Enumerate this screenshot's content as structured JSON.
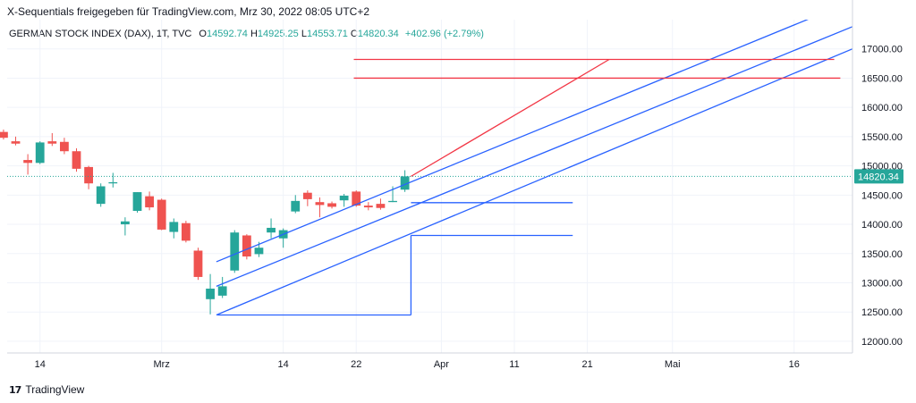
{
  "header": {
    "text": "X-Sequentials freigegeben für TradingView.com, Mrz 30, 2022 08:05 UTC+2"
  },
  "legend": {
    "symbol": "GERMAN STOCK INDEX (DAX), 1T, TVC",
    "open_label": "O",
    "open": "14592.74",
    "high_label": "H",
    "high": "14925.25",
    "low_label": "L",
    "low": "14553.71",
    "close_label": "C",
    "close": "14820.34",
    "change": "+402.96 (+2.79%)"
  },
  "footer": {
    "logo_text": "17",
    "brand": "TradingView"
  },
  "colors": {
    "up": "#26a69a",
    "down": "#ef5350",
    "trendline": "#2962ff",
    "target": "#f23645",
    "grid": "#f0f3fa",
    "last_price_bg": "#26a69a"
  },
  "chart_data": {
    "type": "candlestick",
    "title": "GERMAN STOCK INDEX (DAX), 1T, TVC",
    "xlabel": "",
    "ylabel": "",
    "ylim": [
      11800,
      17500
    ],
    "grid": true,
    "last_price": 14820.34,
    "last_price_label": "14820.34",
    "y_ticks": [
      {
        "value": 12000,
        "label": "12000.00"
      },
      {
        "value": 12500,
        "label": "12500.00"
      },
      {
        "value": 13000,
        "label": "13000.00"
      },
      {
        "value": 13500,
        "label": "13500.00"
      },
      {
        "value": 14000,
        "label": "14000.00"
      },
      {
        "value": 14500,
        "label": "14500.00"
      },
      {
        "value": 15000,
        "label": "15000.00"
      },
      {
        "value": 15500,
        "label": "15500.00"
      },
      {
        "value": 16000,
        "label": "16000.00"
      },
      {
        "value": 16500,
        "label": "16500.00"
      },
      {
        "value": 17000,
        "label": "17000.00"
      }
    ],
    "x_ticks": [
      {
        "index": 3,
        "label": "14"
      },
      {
        "index": 13,
        "label": "Mrz"
      },
      {
        "index": 23,
        "label": "14"
      },
      {
        "index": 29,
        "label": "22"
      },
      {
        "index": 36,
        "label": "Apr"
      },
      {
        "index": 42,
        "label": "11"
      },
      {
        "index": 48,
        "label": "21"
      },
      {
        "index": 55,
        "label": "Mai"
      },
      {
        "index": 65,
        "label": "16"
      }
    ],
    "x_range": [
      0.3,
      69.8
    ],
    "candles": [
      {
        "o": 15580,
        "h": 15620,
        "l": 15450,
        "c": 15480
      },
      {
        "o": 15420,
        "h": 15500,
        "l": 15350,
        "c": 15380
      },
      {
        "o": 15100,
        "h": 15200,
        "l": 14850,
        "c": 15050
      },
      {
        "o": 15050,
        "h": 15420,
        "l": 15030,
        "c": 15400
      },
      {
        "o": 15420,
        "h": 15560,
        "l": 15340,
        "c": 15380
      },
      {
        "o": 15410,
        "h": 15480,
        "l": 15200,
        "c": 15250
      },
      {
        "o": 15250,
        "h": 15300,
        "l": 14900,
        "c": 14950
      },
      {
        "o": 14980,
        "h": 15000,
        "l": 14600,
        "c": 14700
      },
      {
        "o": 14350,
        "h": 14700,
        "l": 14300,
        "c": 14650
      },
      {
        "o": 14700,
        "h": 14880,
        "l": 14630,
        "c": 14720
      },
      {
        "o": 14000,
        "h": 14120,
        "l": 13810,
        "c": 14050
      },
      {
        "o": 14230,
        "h": 14550,
        "l": 14200,
        "c": 14550
      },
      {
        "o": 14480,
        "h": 14560,
        "l": 14240,
        "c": 14290
      },
      {
        "o": 14420,
        "h": 14440,
        "l": 13900,
        "c": 13910
      },
      {
        "o": 13870,
        "h": 14100,
        "l": 13760,
        "c": 14040
      },
      {
        "o": 14020,
        "h": 14060,
        "l": 13690,
        "c": 13720
      },
      {
        "o": 13550,
        "h": 13600,
        "l": 13050,
        "c": 13100
      },
      {
        "o": 12720,
        "h": 13150,
        "l": 12460,
        "c": 12900
      },
      {
        "o": 12780,
        "h": 13100,
        "l": 12740,
        "c": 12940
      },
      {
        "o": 13210,
        "h": 13900,
        "l": 13170,
        "c": 13860
      },
      {
        "o": 13810,
        "h": 13830,
        "l": 13400,
        "c": 13450
      },
      {
        "o": 13490,
        "h": 13700,
        "l": 13440,
        "c": 13600
      },
      {
        "o": 13860,
        "h": 14100,
        "l": 13760,
        "c": 13940
      },
      {
        "o": 13760,
        "h": 13930,
        "l": 13600,
        "c": 13900
      },
      {
        "o": 14220,
        "h": 14500,
        "l": 14190,
        "c": 14400
      },
      {
        "o": 14540,
        "h": 14580,
        "l": 14310,
        "c": 14430
      },
      {
        "o": 14380,
        "h": 14460,
        "l": 14120,
        "c": 14330
      },
      {
        "o": 14360,
        "h": 14390,
        "l": 14270,
        "c": 14300
      },
      {
        "o": 14410,
        "h": 14520,
        "l": 14300,
        "c": 14490
      },
      {
        "o": 14560,
        "h": 14580,
        "l": 14300,
        "c": 14320
      },
      {
        "o": 14320,
        "h": 14380,
        "l": 14240,
        "c": 14290
      },
      {
        "o": 14350,
        "h": 14440,
        "l": 14250,
        "c": 14280
      },
      {
        "o": 14380,
        "h": 14650,
        "l": 14380,
        "c": 14400
      },
      {
        "o": 14592.74,
        "h": 14925.25,
        "l": 14553.71,
        "c": 14820.34
      }
    ],
    "drawings": [
      {
        "kind": "trendline",
        "color": "trendline",
        "from": [
          17.5,
          13360
        ],
        "to": [
          66.3,
          17520
        ]
      },
      {
        "kind": "trendline",
        "color": "trendline",
        "from": [
          17.5,
          12940
        ],
        "to": [
          69.8,
          17380
        ]
      },
      {
        "kind": "trendline",
        "color": "trendline",
        "from": [
          17.5,
          12450
        ],
        "to": [
          69.8,
          17000
        ]
      },
      {
        "kind": "trendline",
        "color": "target",
        "from": [
          33.5,
          14820
        ],
        "to": [
          49.8,
          16820
        ]
      },
      {
        "kind": "trendline",
        "color": "target",
        "from": [
          28.8,
          16820
        ],
        "to": [
          68.3,
          16820
        ]
      },
      {
        "kind": "trendline",
        "color": "target",
        "from": [
          28.8,
          16500
        ],
        "to": [
          68.8,
          16500
        ]
      },
      {
        "kind": "trendline",
        "color": "trendline",
        "from": [
          33.5,
          14370
        ],
        "to": [
          46.8,
          14370
        ]
      },
      {
        "kind": "trendline",
        "color": "trendline",
        "from": [
          33.5,
          13810
        ],
        "to": [
          46.8,
          13810
        ]
      },
      {
        "kind": "trendline",
        "color": "trendline",
        "from": [
          17.6,
          12450
        ],
        "to": [
          33.5,
          12450
        ]
      },
      {
        "kind": "trendline",
        "color": "trendline",
        "from": [
          33.5,
          12450
        ],
        "to": [
          33.5,
          13810
        ]
      }
    ]
  }
}
